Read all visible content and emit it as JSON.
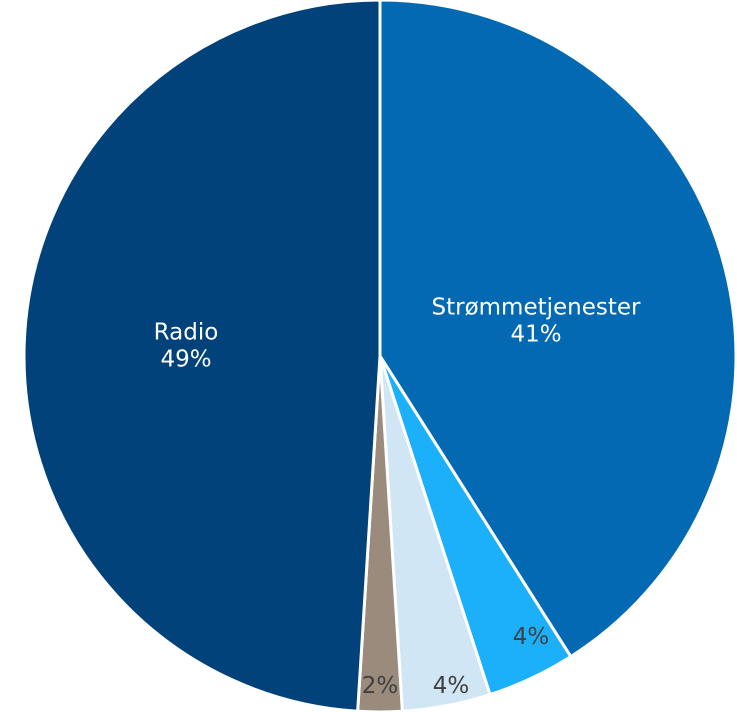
{
  "chart_data": {
    "type": "pie",
    "title": "",
    "start_angle_deg": 0,
    "direction": "clockwise",
    "slices": [
      {
        "label": "Strømmetjenester",
        "value": 41,
        "value_label": "41%",
        "color": "#0369b3",
        "label_color": "#ffffff"
      },
      {
        "label": "",
        "value": 4,
        "value_label": "4%",
        "color": "#1bb0f9",
        "label_color": "#404040"
      },
      {
        "label": "",
        "value": 4,
        "value_label": "4%",
        "color": "#d0e6f5",
        "label_color": "#404040"
      },
      {
        "label": "",
        "value": 2,
        "value_label": "2%",
        "color": "#9a8b7d",
        "label_color": "#404040"
      },
      {
        "label": "Radio",
        "value": 49,
        "value_label": "49%",
        "color": "#02427a",
        "label_color": "#ffffff"
      }
    ]
  }
}
